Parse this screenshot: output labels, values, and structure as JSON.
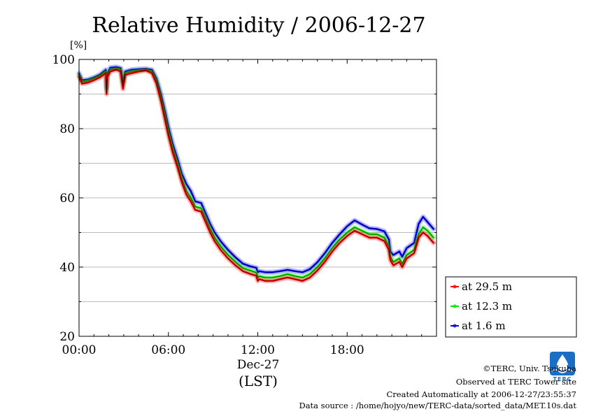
{
  "chart_data": {
    "type": "line",
    "title": "Relative Humidity / 2006-12-27",
    "ylabel": "[%]",
    "xlabel_line1": "Dec-27",
    "xlabel_line2": "(LST)",
    "ylim": [
      20,
      100
    ],
    "xlim_hours": [
      0,
      24
    ],
    "yticks": [
      "20",
      "40",
      "60",
      "80",
      "100"
    ],
    "xticks": [
      "00:00",
      "06:00",
      "12:00",
      "18:00"
    ],
    "grid": true,
    "legend_position": "right, below plot",
    "x": [
      0,
      0.2,
      0.6,
      1.0,
      1.4,
      1.8,
      1.85,
      1.9,
      2.1,
      2.5,
      2.8,
      2.95,
      3.1,
      3.5,
      4.0,
      4.5,
      4.9,
      5.2,
      5.5,
      5.8,
      6.0,
      6.3,
      6.6,
      6.9,
      7.2,
      7.5,
      7.8,
      8.2,
      8.5,
      8.8,
      9.1,
      9.5,
      10.0,
      10.5,
      11.0,
      11.5,
      11.9,
      12.0,
      12.1,
      12.5,
      13.0,
      13.5,
      14.0,
      14.5,
      15.0,
      15.5,
      16.0,
      16.5,
      17.0,
      17.5,
      18.0,
      18.5,
      19.0,
      19.5,
      20.0,
      20.5,
      20.8,
      20.9,
      21.1,
      21.5,
      21.7,
      22.0,
      22.5,
      22.8,
      23.1,
      23.4,
      23.8
    ],
    "series": [
      {
        "name": "at 29.5 m",
        "color": "#ff0000",
        "values": [
          95.0,
          93.0,
          93.3,
          94.0,
          94.8,
          96.0,
          90.0,
          95.0,
          96.5,
          97.0,
          96.5,
          91.5,
          95.5,
          96.0,
          96.5,
          96.8,
          96.0,
          93.0,
          88.0,
          82.0,
          78.0,
          73.0,
          69.0,
          64.5,
          61.0,
          59.0,
          56.5,
          56.0,
          53.0,
          50.0,
          47.5,
          45.0,
          42.5,
          40.5,
          38.8,
          38.0,
          37.5,
          36.0,
          36.5,
          36.0,
          36.0,
          36.5,
          37.0,
          36.5,
          36.0,
          37.0,
          39.0,
          41.5,
          44.5,
          47.0,
          49.0,
          50.5,
          49.5,
          48.5,
          48.5,
          47.5,
          45.0,
          42.0,
          40.5,
          41.5,
          40.0,
          42.5,
          44.0,
          48.5,
          50.0,
          49.0,
          47.0
        ]
      },
      {
        "name": "at 12.3 m",
        "color": "#00ee00",
        "values": [
          95.5,
          93.5,
          93.8,
          94.5,
          95.3,
          96.5,
          91.0,
          95.5,
          97.0,
          97.3,
          97.0,
          92.5,
          96.0,
          96.5,
          96.8,
          97.0,
          96.5,
          93.8,
          89.0,
          83.0,
          79.0,
          74.0,
          70.0,
          65.5,
          62.0,
          60.0,
          57.5,
          57.0,
          54.0,
          51.0,
          48.5,
          46.0,
          43.5,
          41.5,
          39.7,
          39.0,
          38.4,
          37.0,
          37.4,
          37.0,
          37.0,
          37.4,
          38.0,
          37.4,
          37.0,
          38.0,
          40.0,
          42.5,
          45.5,
          48.0,
          50.0,
          51.5,
          50.5,
          49.5,
          49.5,
          48.5,
          46.0,
          43.0,
          41.5,
          42.5,
          41.0,
          43.5,
          45.0,
          49.5,
          51.5,
          50.5,
          48.5
        ]
      },
      {
        "name": "at 1.6 m",
        "color": "#0000ff",
        "values": [
          96.0,
          94.0,
          94.2,
          94.8,
          95.6,
          97.0,
          91.8,
          96.0,
          97.6,
          97.8,
          97.5,
          93.5,
          96.5,
          97.0,
          97.2,
          97.3,
          97.0,
          94.5,
          90.0,
          84.5,
          80.5,
          75.5,
          71.5,
          67.0,
          64.0,
          62.0,
          59.0,
          58.5,
          55.5,
          52.5,
          50.0,
          47.5,
          45.0,
          42.8,
          41.0,
          40.2,
          39.8,
          38.5,
          38.8,
          38.5,
          38.5,
          38.8,
          39.2,
          38.8,
          38.5,
          39.4,
          41.4,
          44.0,
          47.0,
          49.5,
          51.8,
          53.5,
          52.3,
          51.2,
          51.0,
          50.3,
          48.0,
          44.5,
          43.5,
          44.5,
          43.0,
          45.5,
          47.0,
          52.5,
          54.5,
          53.0,
          51.0
        ]
      }
    ]
  },
  "credits": {
    "copyright": "©TERC, Univ. Tsukuba",
    "observed": "Observed at TERC Tower site",
    "created": "Created Automatically at 2006-12-27/23:55:37",
    "source": "Data source : /home/hojyo/new/TERC-data/sorted_data/MET.10s.dat",
    "logo_text": "TERC"
  }
}
